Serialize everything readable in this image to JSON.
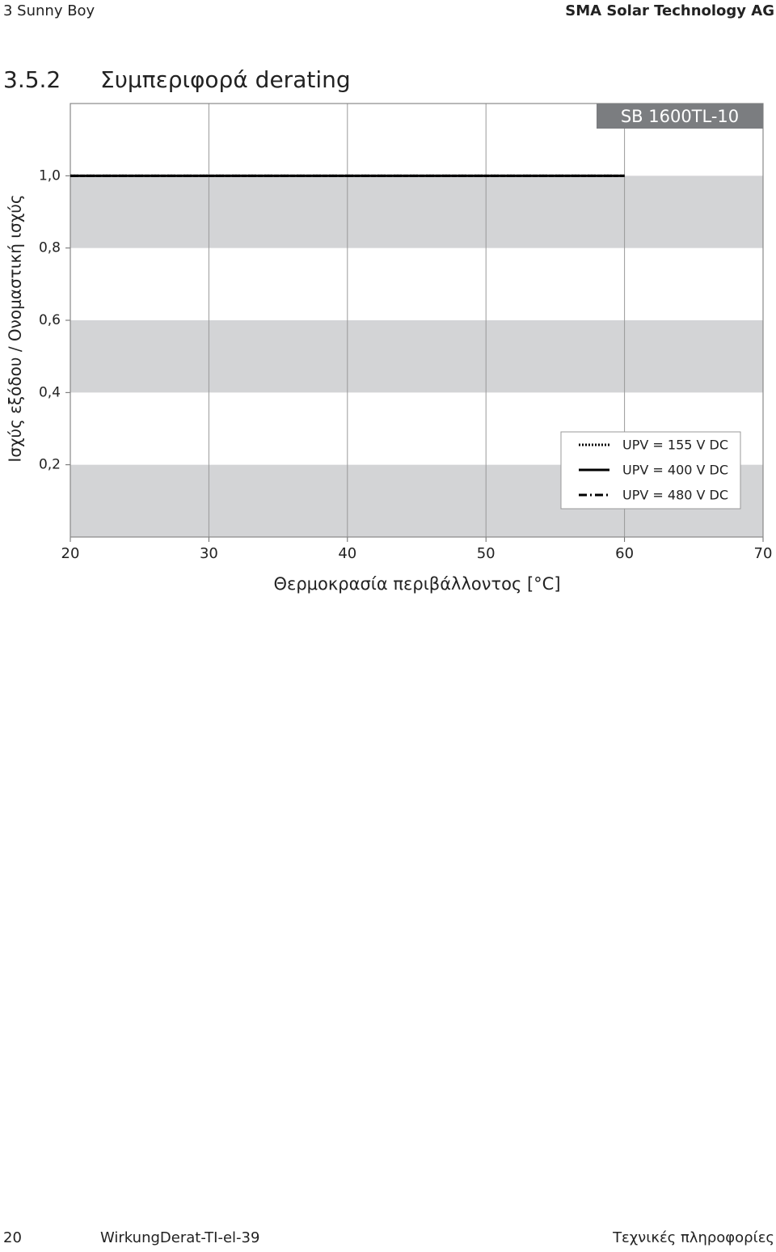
{
  "header": {
    "left": "3 Sunny Boy",
    "right": "SMA Solar Technology AG"
  },
  "section": {
    "number": "3.5.2",
    "title": "Συμπεριφορά derating"
  },
  "chart_data": {
    "type": "line",
    "badge": "SB 1600TL-10",
    "x_label": "Θερμοκρασία περιβάλλοντος [°C]",
    "y_label": "Ισχύς εξόδου / Ονομαστική ισχύς",
    "x": [
      20,
      60
    ],
    "series": [
      {
        "name": "UPV = 155 V DC",
        "color": "#000000",
        "style": "dotted",
        "values": [
          1.0,
          1.0
        ]
      },
      {
        "name": "UPV = 400 V DC",
        "color": "#000000",
        "style": "solid",
        "values": [
          1.0,
          1.0
        ]
      },
      {
        "name": "UPV = 480 V DC",
        "color": "#000000",
        "style": "dashdot",
        "values": [
          1.0,
          1.0
        ]
      }
    ],
    "xlim": [
      20,
      70
    ],
    "xticks": [
      20,
      30,
      40,
      50,
      60,
      70
    ],
    "ylim": [
      0,
      1.2
    ],
    "yticks": [
      {
        "value": 0.2,
        "label": "0,2"
      },
      {
        "value": 0.4,
        "label": "0,4"
      },
      {
        "value": 0.6,
        "label": "0,6"
      },
      {
        "value": 0.8,
        "label": "0,8"
      },
      {
        "value": 1.0,
        "label": "1,0"
      }
    ],
    "grid": true,
    "bands_color": "#d3d4d6",
    "legend": "lower right"
  },
  "footer": {
    "page": "20",
    "code": "WirkungDerat-TI-el-39",
    "right": "Τεχνικές πληροφορίες"
  }
}
